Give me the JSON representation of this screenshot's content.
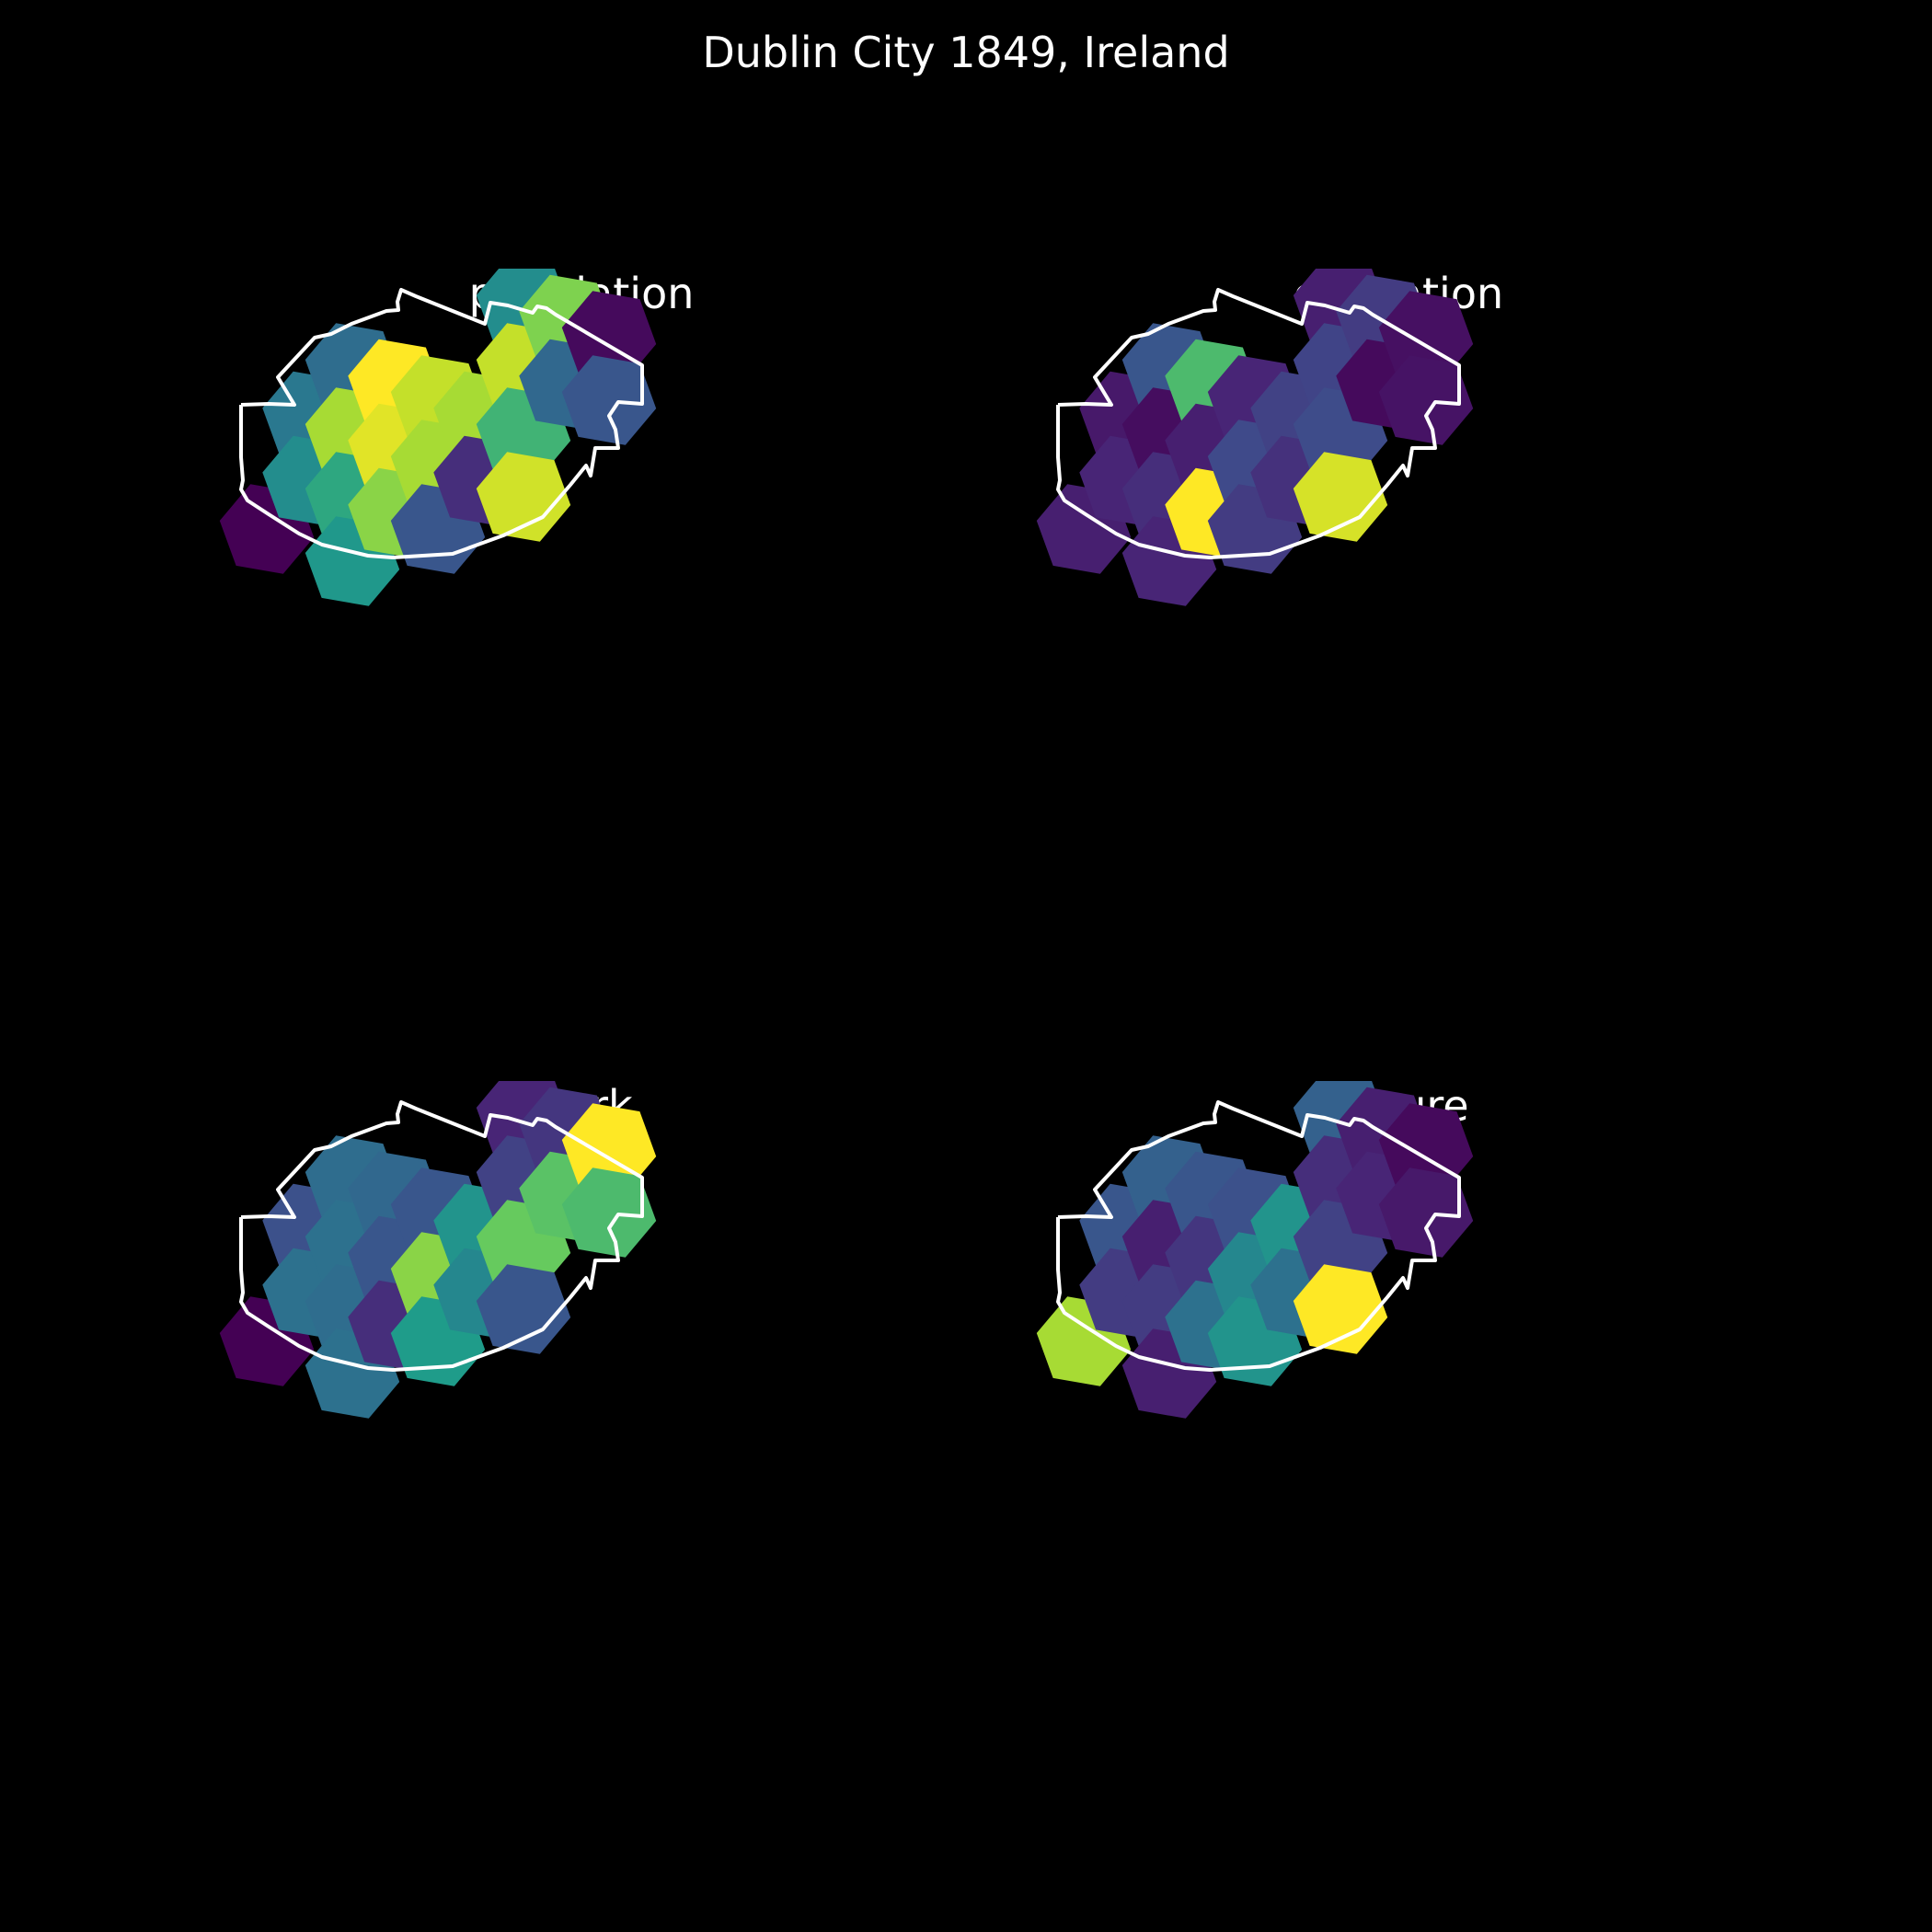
{
  "title": "Dublin City 1849, Ireland",
  "colormap": [
    "#440154",
    "#482777",
    "#3f4a8a",
    "#31678e",
    "#26838f",
    "#1f9d8a",
    "#6cce5a",
    "#b6de2b",
    "#fee825"
  ],
  "boundary_color": "#ffffff",
  "background": "#000000",
  "chart_data": [
    {
      "type": "heatmap",
      "title": "population",
      "cells": [
        {
          "col": 0,
          "row": 5,
          "value": 0.0
        },
        {
          "col": 1,
          "row": 2,
          "value": 0.45
        },
        {
          "col": 1,
          "row": 4,
          "value": 0.55
        },
        {
          "col": 2,
          "row": 1,
          "value": 0.4
        },
        {
          "col": 2,
          "row": 3,
          "value": 0.85
        },
        {
          "col": 2,
          "row": 5,
          "value": 0.65
        },
        {
          "col": 2,
          "row": 7,
          "value": 0.6
        },
        {
          "col": 3,
          "row": 2,
          "value": 1.0
        },
        {
          "col": 3,
          "row": 4,
          "value": 0.95
        },
        {
          "col": 3,
          "row": 6,
          "value": 0.8
        },
        {
          "col": 4,
          "row": 3,
          "value": 0.9
        },
        {
          "col": 4,
          "row": 5,
          "value": 0.85
        },
        {
          "col": 4,
          "row": 7,
          "value": 0.3
        },
        {
          "col": 5,
          "row": 4,
          "value": 0.85
        },
        {
          "col": 5,
          "row": 6,
          "value": 0.15
        },
        {
          "col": 6,
          "row": 1,
          "value": 0.55
        },
        {
          "col": 6,
          "row": 3,
          "value": 0.9
        },
        {
          "col": 6,
          "row": 5,
          "value": 0.68
        },
        {
          "col": 6,
          "row": 7,
          "value": 0.92
        },
        {
          "col": 7,
          "row": 2,
          "value": 0.78
        },
        {
          "col": 7,
          "row": 4,
          "value": 0.38
        },
        {
          "col": 8,
          "row": 3,
          "value": 0.03
        },
        {
          "col": 8,
          "row": 5,
          "value": 0.3
        }
      ]
    },
    {
      "type": "heatmap",
      "title": "education",
      "cells": [
        {
          "col": 0,
          "row": 5,
          "value": 0.1
        },
        {
          "col": 1,
          "row": 2,
          "value": 0.08
        },
        {
          "col": 1,
          "row": 4,
          "value": 0.12
        },
        {
          "col": 2,
          "row": 1,
          "value": 0.3
        },
        {
          "col": 2,
          "row": 3,
          "value": 0.04
        },
        {
          "col": 2,
          "row": 5,
          "value": 0.15
        },
        {
          "col": 2,
          "row": 7,
          "value": 0.12
        },
        {
          "col": 3,
          "row": 2,
          "value": 0.7
        },
        {
          "col": 3,
          "row": 4,
          "value": 0.1
        },
        {
          "col": 3,
          "row": 6,
          "value": 1.0
        },
        {
          "col": 4,
          "row": 3,
          "value": 0.12
        },
        {
          "col": 4,
          "row": 5,
          "value": 0.25
        },
        {
          "col": 4,
          "row": 7,
          "value": 0.2
        },
        {
          "col": 5,
          "row": 4,
          "value": 0.22
        },
        {
          "col": 5,
          "row": 6,
          "value": 0.16
        },
        {
          "col": 6,
          "row": 1,
          "value": 0.1
        },
        {
          "col": 6,
          "row": 3,
          "value": 0.23
        },
        {
          "col": 6,
          "row": 5,
          "value": 0.26
        },
        {
          "col": 6,
          "row": 7,
          "value": 0.93
        },
        {
          "col": 7,
          "row": 2,
          "value": 0.2
        },
        {
          "col": 7,
          "row": 4,
          "value": 0.03
        },
        {
          "col": 8,
          "row": 3,
          "value": 0.05
        },
        {
          "col": 8,
          "row": 5,
          "value": 0.06
        }
      ]
    },
    {
      "type": "heatmap",
      "title": "work",
      "cells": [
        {
          "col": 0,
          "row": 5,
          "value": 0.0
        },
        {
          "col": 1,
          "row": 2,
          "value": 0.28
        },
        {
          "col": 1,
          "row": 4,
          "value": 0.42
        },
        {
          "col": 2,
          "row": 1,
          "value": 0.4
        },
        {
          "col": 2,
          "row": 3,
          "value": 0.42
        },
        {
          "col": 2,
          "row": 5,
          "value": 0.4
        },
        {
          "col": 2,
          "row": 7,
          "value": 0.42
        },
        {
          "col": 3,
          "row": 2,
          "value": 0.38
        },
        {
          "col": 3,
          "row": 4,
          "value": 0.3
        },
        {
          "col": 3,
          "row": 6,
          "value": 0.15
        },
        {
          "col": 4,
          "row": 3,
          "value": 0.3
        },
        {
          "col": 4,
          "row": 5,
          "value": 0.8
        },
        {
          "col": 4,
          "row": 7,
          "value": 0.62
        },
        {
          "col": 5,
          "row": 4,
          "value": 0.58
        },
        {
          "col": 5,
          "row": 6,
          "value": 0.52
        },
        {
          "col": 6,
          "row": 1,
          "value": 0.12
        },
        {
          "col": 6,
          "row": 3,
          "value": 0.22
        },
        {
          "col": 6,
          "row": 5,
          "value": 0.74
        },
        {
          "col": 6,
          "row": 7,
          "value": 0.3
        },
        {
          "col": 7,
          "row": 2,
          "value": 0.18
        },
        {
          "col": 7,
          "row": 4,
          "value": 0.72
        },
        {
          "col": 8,
          "row": 3,
          "value": 1.0
        },
        {
          "col": 8,
          "row": 5,
          "value": 0.7
        }
      ]
    },
    {
      "type": "heatmap",
      "title": "leisure",
      "cells": [
        {
          "col": 0,
          "row": 5,
          "value": 0.85
        },
        {
          "col": 1,
          "row": 2,
          "value": 0.3
        },
        {
          "col": 1,
          "row": 4,
          "value": 0.2
        },
        {
          "col": 2,
          "row": 1,
          "value": 0.35
        },
        {
          "col": 2,
          "row": 3,
          "value": 0.1
        },
        {
          "col": 2,
          "row": 5,
          "value": 0.2
        },
        {
          "col": 2,
          "row": 7,
          "value": 0.1
        },
        {
          "col": 3,
          "row": 2,
          "value": 0.3
        },
        {
          "col": 3,
          "row": 4,
          "value": 0.18
        },
        {
          "col": 3,
          "row": 6,
          "value": 0.42
        },
        {
          "col": 4,
          "row": 3,
          "value": 0.28
        },
        {
          "col": 4,
          "row": 5,
          "value": 0.52
        },
        {
          "col": 4,
          "row": 7,
          "value": 0.58
        },
        {
          "col": 5,
          "row": 4,
          "value": 0.58
        },
        {
          "col": 5,
          "row": 6,
          "value": 0.42
        },
        {
          "col": 6,
          "row": 1,
          "value": 0.35
        },
        {
          "col": 6,
          "row": 3,
          "value": 0.15
        },
        {
          "col": 6,
          "row": 5,
          "value": 0.22
        },
        {
          "col": 6,
          "row": 7,
          "value": 1.0
        },
        {
          "col": 7,
          "row": 2,
          "value": 0.1
        },
        {
          "col": 7,
          "row": 4,
          "value": 0.12
        },
        {
          "col": 8,
          "row": 3,
          "value": 0.03
        },
        {
          "col": 8,
          "row": 5,
          "value": 0.08
        }
      ]
    }
  ]
}
